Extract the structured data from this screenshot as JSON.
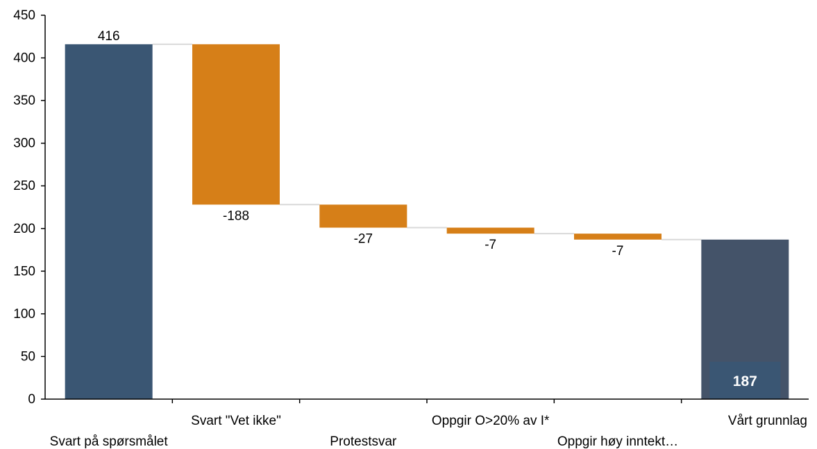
{
  "chart_data": {
    "type": "bar",
    "subtype": "waterfall",
    "title": "",
    "xlabel": "",
    "ylabel": "",
    "ylim": [
      0,
      450
    ],
    "yticks": [
      0,
      50,
      100,
      150,
      200,
      250,
      300,
      350,
      400,
      450
    ],
    "grid": false,
    "legend": "none",
    "categories": [
      "Svart på spørsmålet",
      "Svart \"Vet ikke\"",
      "Protestsvar",
      "Oppgir O>20% av I*",
      "Oppgir høy inntekt…",
      "Vårt grunnlag"
    ],
    "values": [
      416,
      -188,
      -27,
      -7,
      -7,
      187
    ],
    "data_labels": [
      "416",
      "-188",
      "-27",
      "-7",
      "-7",
      "187"
    ],
    "kinds": [
      "total",
      "decrease",
      "decrease",
      "decrease",
      "decrease",
      "total"
    ],
    "colors": {
      "start_total": "#3a5673",
      "decrease": "#d67f18",
      "end_total": "#445369",
      "end_label_box": "#3a5673",
      "connector": "#d9d9d9",
      "axis": "#000000"
    }
  }
}
